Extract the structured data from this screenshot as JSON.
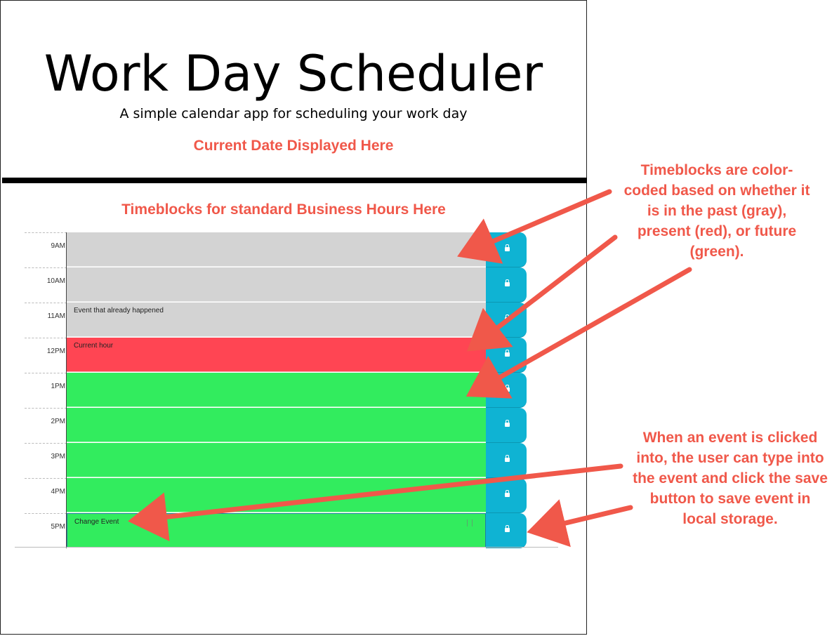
{
  "header": {
    "title": "Work Day Scheduler",
    "subtitle": "A simple calendar app for scheduling your work day",
    "current_date": "Current Date Displayed Here"
  },
  "main": {
    "heading": "Timeblocks for standard Business Hours Here"
  },
  "timeblocks": [
    {
      "hour": "9AM",
      "event": "",
      "status": "past"
    },
    {
      "hour": "10AM",
      "event": "",
      "status": "past"
    },
    {
      "hour": "11AM",
      "event": "Event that already happened",
      "status": "past"
    },
    {
      "hour": "12PM",
      "event": "Current hour",
      "status": "present"
    },
    {
      "hour": "1PM",
      "event": "",
      "status": "future"
    },
    {
      "hour": "2PM",
      "event": "",
      "status": "future"
    },
    {
      "hour": "3PM",
      "event": "",
      "status": "future"
    },
    {
      "hour": "4PM",
      "event": "",
      "status": "future"
    },
    {
      "hour": "5PM",
      "event": "Change Event",
      "status": "future"
    }
  ],
  "annotations": {
    "color_note": "Timeblocks are color-coded based on whether it is in the past (gray), present (red), or future (green).",
    "save_note": "When an event is clicked into, the user can type into the event and click the save button to save event in local storage."
  },
  "colors": {
    "past": "#d3d3d3",
    "present": "#ff4553",
    "future": "#32ec5e",
    "save_button": "#0fb3d3",
    "annotation": "#f0584a"
  },
  "icons": {
    "save": "lock-icon"
  }
}
